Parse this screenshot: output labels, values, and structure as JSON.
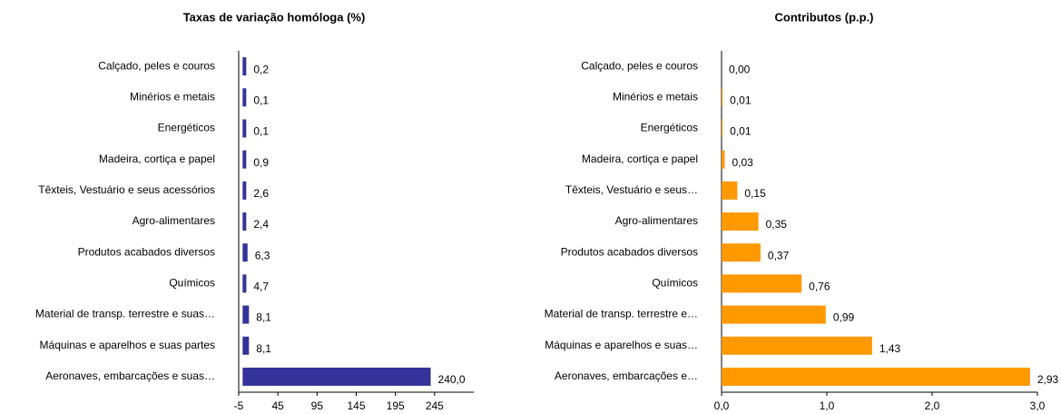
{
  "chart_data": [
    {
      "type": "barh",
      "title": "Taxas de variação homóloga (%)",
      "categories": [
        "Calçado, peles e couros",
        "Minérios e metais",
        "Energéticos",
        "Madeira, cortiça e papel",
        "Têxteis, Vestuário e seus acessórios",
        "Agro-alimentares",
        "Produtos acabados diversos",
        "Químicos",
        "Material de transp. terrestre e suas…",
        "Máquinas e aparelhos e suas partes",
        "Aeronaves, embarcações e suas…"
      ],
      "values": [
        0.2,
        0.1,
        0.1,
        0.9,
        2.6,
        2.4,
        6.3,
        4.7,
        8.1,
        8.1,
        240.0
      ],
      "value_labels": [
        "0,2",
        "0,1",
        "0,1",
        "0,9",
        "2,6",
        "2,4",
        "6,3",
        "4,7",
        "8,1",
        "8,1",
        "240,0"
      ],
      "color": "#333399",
      "xlim": [
        -5,
        295
      ],
      "xticks": [
        -5,
        45,
        95,
        145,
        195,
        245
      ]
    },
    {
      "type": "barh",
      "title": "Contributos (p.p.)",
      "categories": [
        "Calçado, peles e couros",
        "Minérios e metais",
        "Energéticos",
        "Madeira, cortiça e papel",
        "Têxteis, Vestuário e seus…",
        "Agro-alimentares",
        "Produtos acabados diversos",
        "Químicos",
        "Material de transp. terrestre e…",
        "Máquinas e aparelhos e suas…",
        "Aeronaves, embarcações e…"
      ],
      "values": [
        0.0,
        0.01,
        0.01,
        0.03,
        0.15,
        0.35,
        0.37,
        0.76,
        0.99,
        1.43,
        2.93
      ],
      "value_labels": [
        "0,00",
        "0,01",
        "0,01",
        "0,03",
        "0,15",
        "0,35",
        "0,37",
        "0,76",
        "0,99",
        "1,43",
        "2,93"
      ],
      "color": "#ff9900",
      "xlim": [
        0,
        3
      ],
      "xticks": [
        {
          "value": 0,
          "label": "0,0"
        },
        {
          "value": 1,
          "label": "1,0"
        },
        {
          "value": 2,
          "label": "2,0"
        },
        {
          "value": 3,
          "label": "3,0"
        }
      ]
    }
  ]
}
